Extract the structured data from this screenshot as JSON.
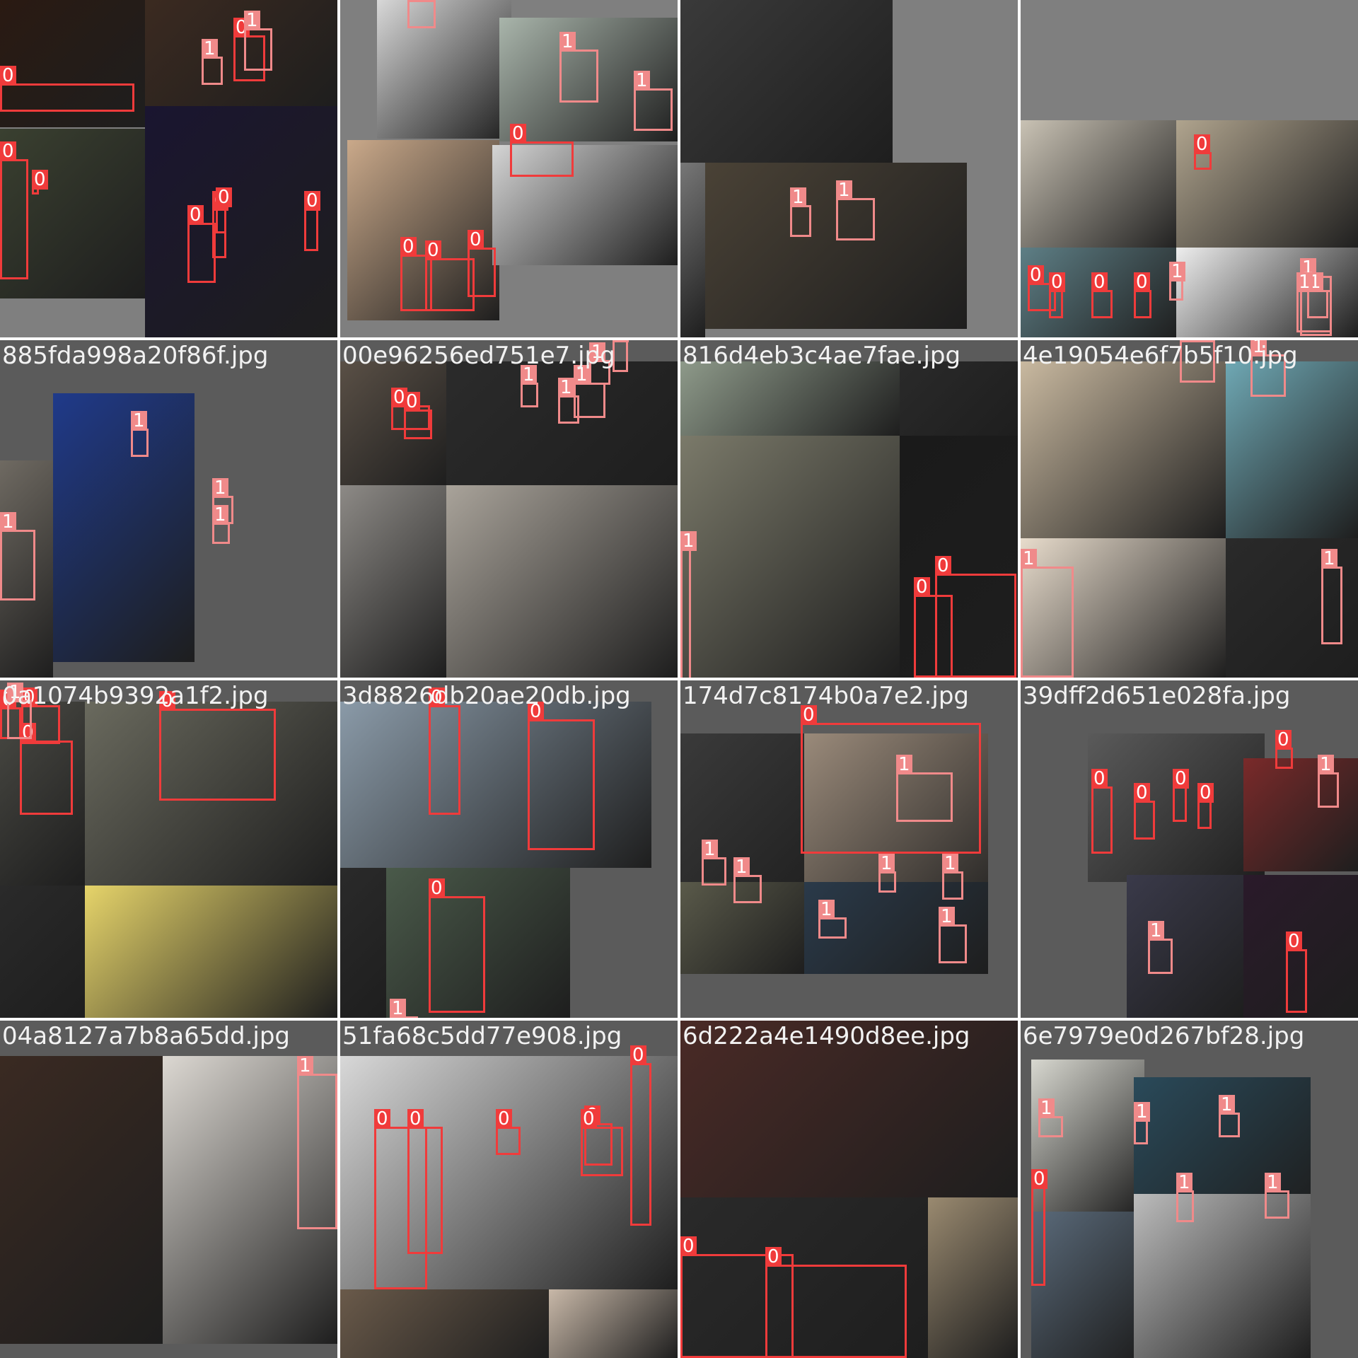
{
  "mosaic": {
    "class_colors": {
      "0": "#f03b3b",
      "1": "#f08a8a"
    },
    "tiles": [
      {
        "name": "",
        "dark": false,
        "photos": [
          "#2a1a12",
          "#3b2a20",
          "#3a4030",
          "#1a1530"
        ],
        "boxes": [
          {
            "cls": "0"
          },
          {
            "cls": "0"
          },
          {
            "cls": "0"
          },
          {
            "cls": "1"
          },
          {
            "cls": "1"
          },
          {
            "cls": "0"
          },
          {
            "cls": "0"
          },
          {
            "cls": "0"
          },
          {
            "cls": "0"
          },
          {
            "cls": "0"
          }
        ]
      },
      {
        "name": "",
        "dark": false,
        "photos": [
          "#d8d8d8",
          "#a9b5ab",
          "#caa98a",
          "#d5d5d5"
        ],
        "boxes": [
          {
            "cls": "1"
          },
          {
            "cls": "1"
          },
          {
            "cls": "1"
          },
          {
            "cls": "0"
          },
          {
            "cls": "0"
          },
          {
            "cls": "0"
          },
          {
            "cls": "0"
          }
        ]
      },
      {
        "name": "",
        "dark": false,
        "photos": [
          "#3a3a3a",
          "#4a4236",
          "#777777"
        ],
        "boxes": [
          {
            "cls": "1"
          },
          {
            "cls": "1"
          }
        ]
      },
      {
        "name": "",
        "dark": false,
        "photos": [
          "#c9c2b4",
          "#b0a48e",
          "#5e7f86",
          "#eeeeee"
        ],
        "boxes": [
          {
            "cls": "0"
          },
          {
            "cls": "1"
          },
          {
            "cls": "1"
          },
          {
            "cls": "0"
          },
          {
            "cls": "0"
          },
          {
            "cls": "0"
          },
          {
            "cls": "0"
          },
          {
            "cls": "1"
          },
          {
            "cls": "1"
          }
        ]
      },
      {
        "name": "885fda998a20f86f.jpg",
        "dark": true,
        "photos": [
          "#1f3a8a",
          "#6f6a62"
        ],
        "boxes": [
          {
            "cls": "1"
          },
          {
            "cls": "1"
          },
          {
            "cls": "1"
          },
          {
            "cls": "1"
          }
        ]
      },
      {
        "name": "00e96256ed751e7.jpg",
        "dark": true,
        "photos": [
          "#5a5046",
          "#2b2b2b",
          "#8d8a86",
          "#a9a39a"
        ],
        "boxes": [
          {
            "cls": "0"
          },
          {
            "cls": "0"
          },
          {
            "cls": "1"
          },
          {
            "cls": "1"
          },
          {
            "cls": "1"
          },
          {
            "cls": "1"
          },
          {
            "cls": "1"
          }
        ]
      },
      {
        "name": "816d4eb3c4ae7fae.jpg",
        "dark": true,
        "photos": [
          "#8e9a8a",
          "#2a2a2a",
          "#7b7a6a",
          "#1a1a1a"
        ],
        "boxes": [
          {
            "cls": "1"
          },
          {
            "cls": "0"
          },
          {
            "cls": "0"
          }
        ]
      },
      {
        "name": "4e19054e6f7b5f10.jpg",
        "dark": true,
        "photos": [
          "#c9b9a0",
          "#6fa8b4",
          "#e8dccc",
          "#2a2a2a"
        ],
        "boxes": [
          {
            "cls": "1"
          },
          {
            "cls": "1"
          },
          {
            "cls": "1"
          },
          {
            "cls": "1"
          }
        ]
      },
      {
        "name": "0a1074b9392a1f2.jpg",
        "dark": true,
        "photos": [
          "#4a4a44",
          "#6a6a5e",
          "#2a2a2a",
          "#e6d46a"
        ],
        "boxes": [
          {
            "cls": "0"
          },
          {
            "cls": "0"
          },
          {
            "cls": "0"
          },
          {
            "cls": "0"
          },
          {
            "cls": "1"
          }
        ]
      },
      {
        "name": "3d8826db20ae20db.jpg",
        "dark": true,
        "photos": [
          "#8a9aa8",
          "#4a5a4a",
          "#2a2a2a"
        ],
        "boxes": [
          {
            "cls": "0"
          },
          {
            "cls": "0"
          },
          {
            "cls": "0"
          },
          {
            "cls": "1"
          }
        ]
      },
      {
        "name": "174d7c8174b0a7e2.jpg",
        "dark": true,
        "photos": [
          "#3a3a3a",
          "#9a8a7a",
          "#5a5a4a",
          "#2a3a4a"
        ],
        "boxes": [
          {
            "cls": "0"
          },
          {
            "cls": "1"
          },
          {
            "cls": "1"
          },
          {
            "cls": "1"
          },
          {
            "cls": "1"
          },
          {
            "cls": "1"
          },
          {
            "cls": "1"
          },
          {
            "cls": "1"
          }
        ]
      },
      {
        "name": "39dff2d651e028fa.jpg",
        "dark": true,
        "photos": [
          "#5a5a5a",
          "#7a2a2a",
          "#3a3a4a",
          "#2a1a2a"
        ],
        "boxes": [
          {
            "cls": "0"
          },
          {
            "cls": "0"
          },
          {
            "cls": "0"
          },
          {
            "cls": "0"
          },
          {
            "cls": "1"
          },
          {
            "cls": "1"
          },
          {
            "cls": "0"
          },
          {
            "cls": "0"
          }
        ]
      },
      {
        "name": "04a8127a7b8a65dd.jpg",
        "dark": true,
        "photos": [
          "#3a2a22",
          "#dcd8d2"
        ],
        "boxes": [
          {
            "cls": "1"
          }
        ]
      },
      {
        "name": "51fa68c5dd77e908.jpg",
        "dark": true,
        "photos": [
          "#d8d8d8",
          "#6a5a4a",
          "#c8b8a8"
        ],
        "boxes": [
          {
            "cls": "0"
          },
          {
            "cls": "0"
          },
          {
            "cls": "0"
          },
          {
            "cls": "0"
          },
          {
            "cls": "0"
          },
          {
            "cls": "0"
          },
          {
            "cls": "1"
          }
        ]
      },
      {
        "name": "6d222a4e1490d8ee.jpg",
        "dark": true,
        "photos": [
          "#4a2a26",
          "#2a2a2a",
          "#9a8a70",
          "#bcbcbc"
        ],
        "boxes": [
          {
            "cls": "0"
          },
          {
            "cls": "0"
          }
        ]
      },
      {
        "name": "6e7979e0d267bf28.jpg",
        "dark": true,
        "photos": [
          "#d8d8d0",
          "#2a4a5a",
          "#5a6a7a",
          "#bcbcbc"
        ],
        "boxes": [
          {
            "cls": "1"
          },
          {
            "cls": "1"
          },
          {
            "cls": "1"
          },
          {
            "cls": "0"
          },
          {
            "cls": "1"
          },
          {
            "cls": "1"
          }
        ]
      }
    ]
  }
}
